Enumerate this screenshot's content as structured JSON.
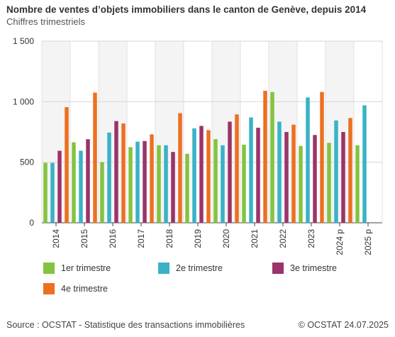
{
  "header": {
    "title": "Nombre de ventes d’objets immobiliers dans le canton de Genève, depuis 2014",
    "subtitle": "Chiffres trimestriels"
  },
  "footer": {
    "source": "Source : OCSTAT - Statistique des transactions immobilières",
    "copyright": "© OCSTAT 24.07.2025"
  },
  "colors": {
    "q1": "#84c341",
    "q2": "#39b2c6",
    "q3": "#9b3468",
    "q4": "#ec7022"
  },
  "chart_data": {
    "type": "bar",
    "title": "Nombre de ventes d’objets immobiliers dans le canton de Genève, depuis 2014",
    "subtitle": "Chiffres trimestriels",
    "categories": [
      "2014",
      "2015",
      "2016",
      "2017",
      "2018",
      "2019",
      "2020",
      "2021",
      "2022",
      "2023",
      "2024 p",
      "2025 p"
    ],
    "ylim": [
      0,
      1500
    ],
    "yticks": [
      0,
      500,
      1000,
      1500
    ],
    "ytick_labels": [
      "0",
      "500",
      "1 000",
      "1 500"
    ],
    "legend_position": "bottom",
    "series": [
      {
        "name": "1er trimestre",
        "values": [
          495,
          665,
          500,
          625,
          640,
          570,
          690,
          645,
          1080,
          635,
          660,
          640
        ]
      },
      {
        "name": "2e trimestre",
        "values": [
          495,
          595,
          745,
          670,
          640,
          780,
          640,
          870,
          835,
          1035,
          845,
          970
        ]
      },
      {
        "name": "3e trimestre",
        "values": [
          595,
          690,
          840,
          675,
          585,
          800,
          835,
          785,
          750,
          725,
          750,
          null
        ]
      },
      {
        "name": "4e trimestre",
        "values": [
          955,
          1075,
          820,
          730,
          905,
          765,
          895,
          1090,
          810,
          1080,
          865,
          null
        ]
      }
    ]
  }
}
